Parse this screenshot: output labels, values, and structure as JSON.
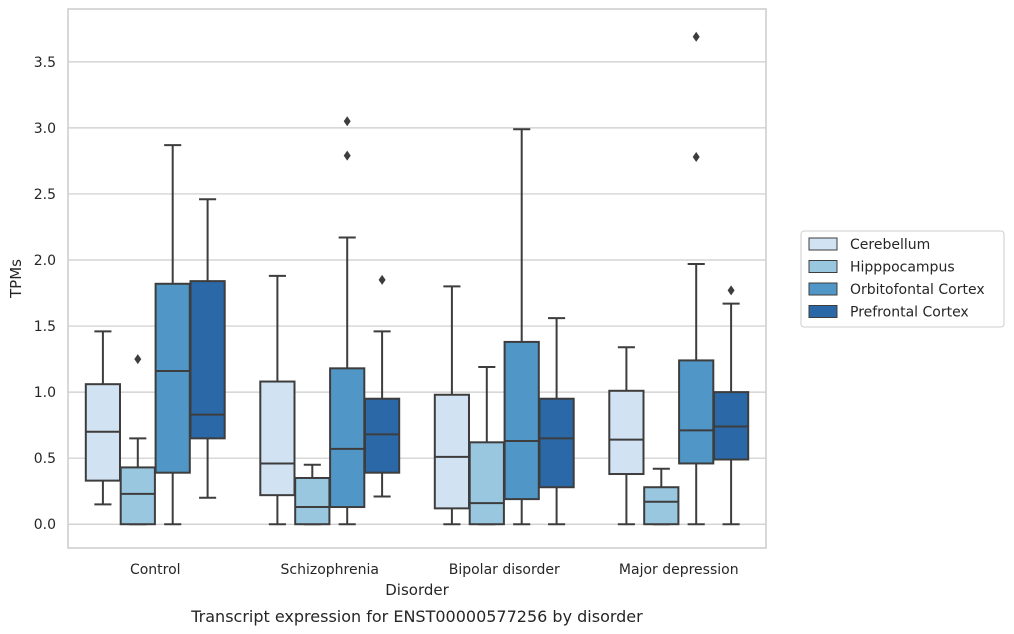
{
  "caption": "Transcript expression for ENST00000577256 by disorder",
  "chart_data": {
    "type": "box",
    "xlabel": "Disorder",
    "ylabel": "TPMs",
    "ylim": [
      -0.18,
      3.9
    ],
    "yticks": [
      "0.0",
      "0.5",
      "1.0",
      "1.5",
      "2.0",
      "2.5",
      "3.0",
      "3.5"
    ],
    "ytick_values": [
      0,
      0.5,
      1.0,
      1.5,
      2.0,
      2.5,
      3.0,
      3.5
    ],
    "grid": "horizontal",
    "legend_position": "right",
    "categories": [
      "Control",
      "Schizophrenia",
      "Bipolar disorder",
      "Major depression"
    ],
    "series": [
      {
        "name": "Cerebellum",
        "color": "#d1e2f2",
        "boxes": [
          {
            "whislo": 0.15,
            "q1": 0.33,
            "med": 0.7,
            "q3": 1.06,
            "whishi": 1.46,
            "fliers": []
          },
          {
            "whislo": 0.0,
            "q1": 0.22,
            "med": 0.46,
            "q3": 1.08,
            "whishi": 1.88,
            "fliers": []
          },
          {
            "whislo": 0.0,
            "q1": 0.12,
            "med": 0.51,
            "q3": 0.98,
            "whishi": 1.8,
            "fliers": []
          },
          {
            "whislo": 0.0,
            "q1": 0.38,
            "med": 0.64,
            "q3": 1.01,
            "whishi": 1.34,
            "fliers": []
          }
        ]
      },
      {
        "name": "Hipppocampus",
        "color": "#9ac7e0",
        "boxes": [
          {
            "whislo": 0.0,
            "q1": 0.0,
            "med": 0.23,
            "q3": 0.43,
            "whishi": 0.65,
            "fliers": [
              1.25
            ]
          },
          {
            "whislo": 0.0,
            "q1": 0.0,
            "med": 0.13,
            "q3": 0.35,
            "whishi": 0.45,
            "fliers": []
          },
          {
            "whislo": 0.0,
            "q1": 0.0,
            "med": 0.16,
            "q3": 0.62,
            "whishi": 1.19,
            "fliers": []
          },
          {
            "whislo": 0.0,
            "q1": 0.0,
            "med": 0.17,
            "q3": 0.28,
            "whishi": 0.42,
            "fliers": []
          }
        ]
      },
      {
        "name": "Orbitofontal Cortex",
        "color": "#5097c7",
        "boxes": [
          {
            "whislo": 0.0,
            "q1": 0.39,
            "med": 1.16,
            "q3": 1.82,
            "whishi": 2.87,
            "fliers": []
          },
          {
            "whislo": 0.0,
            "q1": 0.13,
            "med": 0.57,
            "q3": 1.18,
            "whishi": 2.17,
            "fliers": [
              2.79,
              3.05
            ]
          },
          {
            "whislo": 0.0,
            "q1": 0.19,
            "med": 0.63,
            "q3": 1.38,
            "whishi": 2.99,
            "fliers": []
          },
          {
            "whislo": 0.0,
            "q1": 0.46,
            "med": 0.71,
            "q3": 1.24,
            "whishi": 1.97,
            "fliers": [
              2.78,
              3.69
            ]
          }
        ]
      },
      {
        "name": "Prefrontal Cortex",
        "color": "#2a68a8",
        "boxes": [
          {
            "whislo": 0.2,
            "q1": 0.65,
            "med": 0.83,
            "q3": 1.84,
            "whishi": 2.46,
            "fliers": []
          },
          {
            "whislo": 0.21,
            "q1": 0.39,
            "med": 0.68,
            "q3": 0.95,
            "whishi": 1.46,
            "fliers": [
              1.85
            ]
          },
          {
            "whislo": 0.0,
            "q1": 0.28,
            "med": 0.65,
            "q3": 0.95,
            "whishi": 1.56,
            "fliers": []
          },
          {
            "whislo": 0.0,
            "q1": 0.49,
            "med": 0.74,
            "q3": 1.0,
            "whishi": 1.67,
            "fliers": [
              1.77
            ]
          }
        ]
      }
    ]
  }
}
